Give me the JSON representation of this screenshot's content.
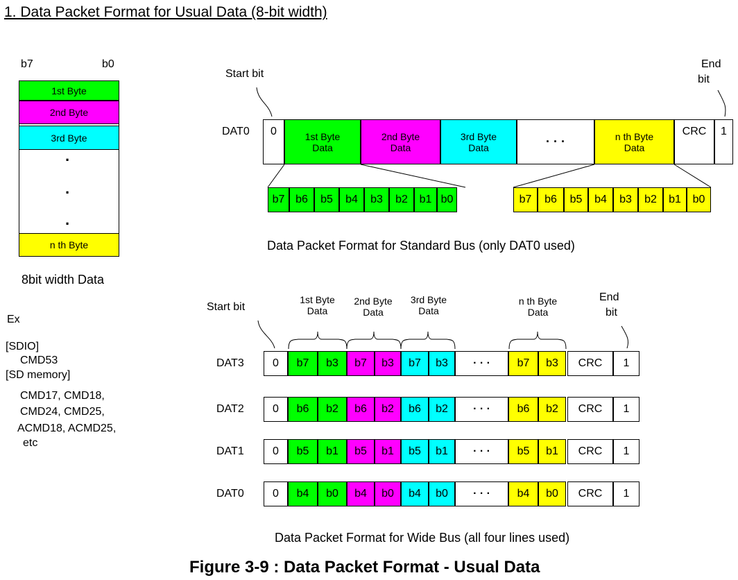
{
  "title": "1. Data Packet Format for Usual Data (8-bit width)",
  "byte_column": {
    "msb": "b7",
    "lsb": "b0",
    "bytes": [
      "1st Byte",
      "2nd Byte",
      "3rd Byte",
      "n th Byte"
    ],
    "dot": "·",
    "caption": "8bit width Data"
  },
  "examples": {
    "heading": "Ex",
    "lines": [
      "[SDIO]",
      "CMD53",
      "[SD memory]",
      "CMD17, CMD18,",
      "CMD24, CMD25,",
      "ACMD18, ACMD25,",
      "etc"
    ]
  },
  "standard_bus": {
    "start_bit": "Start bit",
    "end_bit_1": "End",
    "end_bit_2": "bit",
    "line": "DAT0",
    "start_value": "0",
    "end_value": "1",
    "crc": "CRC",
    "ellipsis": "· · ·",
    "bytes": [
      {
        "l1": "1st Byte",
        "l2": "Data"
      },
      {
        "l1": "2nd Byte",
        "l2": "Data"
      },
      {
        "l1": "3rd Byte",
        "l2": "Data"
      },
      {
        "l1": "n th Byte",
        "l2": "Data"
      }
    ],
    "bits": [
      "b7",
      "b6",
      "b5",
      "b4",
      "b3",
      "b2",
      "b1",
      "b0"
    ],
    "caption": "Data Packet Format for Standard Bus (only DAT0 used)"
  },
  "wide_bus": {
    "start_bit": "Start bit",
    "end_bit_1": "End",
    "end_bit_2": "bit",
    "byte_labels": [
      {
        "l1": "1st Byte",
        "l2": "Data"
      },
      {
        "l1": "2nd Byte",
        "l2": "Data"
      },
      {
        "l1": "3rd Byte",
        "l2": "Data"
      },
      {
        "l1": "n th Byte",
        "l2": "Data"
      }
    ],
    "lines": [
      {
        "name": "DAT3",
        "hi": "b7",
        "lo": "b3"
      },
      {
        "name": "DAT2",
        "hi": "b6",
        "lo": "b2"
      },
      {
        "name": "DAT1",
        "hi": "b5",
        "lo": "b1"
      },
      {
        "name": "DAT0",
        "hi": "b4",
        "lo": "b0"
      }
    ],
    "start_value": "0",
    "end_value": "1",
    "crc": "CRC",
    "ellipsis": "· · ·",
    "caption": "Data Packet Format for Wide Bus (all four lines used)"
  },
  "figure_caption": "Figure 3-9 : Data Packet Format - Usual Data",
  "colors": {
    "byte1": "#00ff00",
    "byte2": "#ff00ff",
    "byte3": "#00ffff",
    "byten": "#ffff00"
  }
}
